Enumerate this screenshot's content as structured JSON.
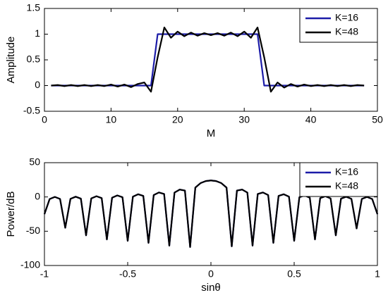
{
  "chart_data": [
    {
      "type": "line",
      "x_label": "M",
      "y_label": "Amplitude",
      "xlim": [
        0,
        50
      ],
      "xticks": [
        0,
        10,
        20,
        30,
        40,
        50
      ],
      "ylim": [
        -0.5,
        1.5
      ],
      "yticks": [
        -0.5,
        0,
        0.5,
        1,
        1.5
      ],
      "legend": "upper right",
      "x": [
        1,
        2,
        3,
        4,
        5,
        6,
        7,
        8,
        9,
        10,
        11,
        12,
        13,
        14,
        15,
        16,
        17,
        18,
        19,
        20,
        21,
        22,
        23,
        24,
        25,
        26,
        27,
        28,
        29,
        30,
        31,
        32,
        33,
        34,
        35,
        36,
        37,
        38,
        39,
        40,
        41,
        42,
        43,
        44,
        45,
        46,
        47,
        48
      ],
      "series": [
        {
          "name": "K=16",
          "color": "#1c1ca8",
          "values": [
            0,
            0,
            0,
            0,
            0,
            0,
            0,
            0,
            0,
            0,
            0,
            0,
            0,
            0,
            0,
            0,
            1,
            1,
            1,
            1,
            1,
            1,
            1,
            1,
            1,
            1,
            1,
            1,
            1,
            1,
            1,
            1,
            0,
            0,
            0,
            0,
            0,
            0,
            0,
            0,
            0,
            0,
            0,
            0,
            0,
            0,
            0,
            0
          ]
        },
        {
          "name": "K=48",
          "color": "#000000",
          "values": [
            0,
            0.01,
            -0.01,
            0.01,
            -0.01,
            0.01,
            -0.01,
            0.01,
            -0.01,
            0.02,
            -0.02,
            0.02,
            -0.03,
            0.03,
            0.06,
            -0.12,
            0.55,
            1.13,
            0.93,
            1.05,
            0.96,
            1.03,
            0.97,
            1.02,
            0.98,
            1.02,
            0.97,
            1.03,
            0.96,
            1.05,
            0.93,
            1.13,
            0.55,
            -0.12,
            0.06,
            -0.04,
            0.03,
            -0.02,
            0.02,
            -0.01,
            0.01,
            -0.01,
            0.01,
            -0.01,
            0.01,
            -0.01,
            0.01,
            0
          ]
        }
      ]
    },
    {
      "type": "line",
      "x_label": "sinθ",
      "y_label": "Power/dB",
      "xlim": [
        -1,
        1
      ],
      "xticks": [
        -1,
        -0.5,
        0,
        0.5,
        1
      ],
      "ylim": [
        -100,
        50
      ],
      "yticks": [
        -100,
        -50,
        0,
        50
      ],
      "legend": "upper right",
      "x": [
        -1,
        -0.96875,
        -0.9375,
        -0.90625,
        -0.875,
        -0.84375,
        -0.8125,
        -0.78125,
        -0.75,
        -0.71875,
        -0.6875,
        -0.65625,
        -0.625,
        -0.59375,
        -0.5625,
        -0.53125,
        -0.5,
        -0.46875,
        -0.4375,
        -0.40625,
        -0.375,
        -0.34375,
        -0.3125,
        -0.28125,
        -0.25,
        -0.21875,
        -0.1875,
        -0.15625,
        -0.125,
        -0.09375,
        -0.0625,
        -0.03125,
        0,
        0.03125,
        0.0625,
        0.09375,
        0.125,
        0.15625,
        0.1875,
        0.21875,
        0.25,
        0.28125,
        0.3125,
        0.34375,
        0.375,
        0.40625,
        0.4375,
        0.46875,
        0.5,
        0.53125,
        0.5625,
        0.59375,
        0.625,
        0.65625,
        0.6875,
        0.71875,
        0.75,
        0.78125,
        0.8125,
        0.84375,
        0.875,
        0.90625,
        0.9375,
        0.96875,
        1
      ],
      "series": [
        {
          "name": "K=16",
          "color": "#1c1ca8",
          "values": [
            -25,
            -3.0,
            0.04,
            -2.92,
            -45,
            -2.75,
            0.38,
            -2.49,
            -56,
            -2.13,
            1.09,
            -1.68,
            -62,
            -1.11,
            2.24,
            -0.41,
            -64,
            0.45,
            3.95,
            1.49,
            -67,
            2.77,
            6.53,
            4.37,
            -71,
            6.44,
            10.74,
            9.28,
            -73,
            13.66,
            20.17,
            23.17,
            24.08,
            23.17,
            20.17,
            13.66,
            -72,
            9.28,
            10.74,
            6.44,
            -71,
            4.37,
            6.53,
            2.77,
            -67,
            1.49,
            3.95,
            0.45,
            -64,
            -0.41,
            2.24,
            -1.11,
            -62,
            -1.68,
            1.09,
            -2.13,
            -56,
            -2.49,
            0.38,
            -2.75,
            -46,
            -2.92,
            0.04,
            -3.0,
            -25
          ]
        },
        {
          "name": "K=48",
          "color": "#000000",
          "values": [
            -25,
            -3.0,
            0.04,
            -2.92,
            -45,
            -2.75,
            0.38,
            -2.49,
            -56,
            -2.13,
            1.09,
            -1.68,
            -62,
            -1.11,
            2.24,
            -0.41,
            -64,
            0.45,
            3.95,
            1.49,
            -67,
            2.77,
            6.53,
            4.37,
            -71,
            6.44,
            10.74,
            9.28,
            -73,
            13.66,
            20.17,
            23.17,
            24.08,
            23.17,
            20.17,
            13.66,
            -72,
            9.28,
            10.74,
            6.44,
            -71,
            4.37,
            6.53,
            2.77,
            -67,
            1.49,
            3.95,
            0.45,
            -64,
            -0.41,
            2.24,
            -1.11,
            -62,
            -1.68,
            1.09,
            -2.13,
            -56,
            -2.49,
            0.38,
            -2.75,
            -46,
            -2.92,
            0.04,
            -3.0,
            -25
          ]
        }
      ]
    }
  ]
}
